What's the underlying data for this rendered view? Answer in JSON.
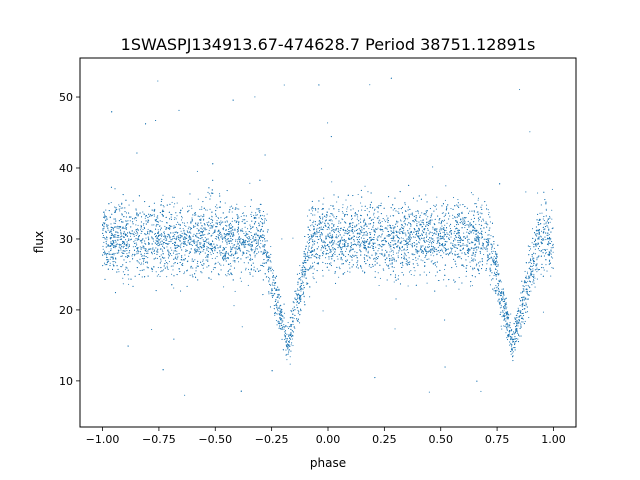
{
  "chart_data": {
    "type": "scatter",
    "title": "1SWASPJ134913.67-474628.7 Period 38751.12891s",
    "xlabel": "phase",
    "ylabel": "flux",
    "xlim": [
      -1.1,
      1.1
    ],
    "ylim": [
      3.5,
      55.5
    ],
    "xticks": [
      -1.0,
      -0.75,
      -0.5,
      -0.25,
      0.0,
      0.25,
      0.5,
      0.75,
      1.0
    ],
    "xtick_labels": [
      "−1.00",
      "−0.75",
      "−0.50",
      "−0.25",
      "0.00",
      "0.25",
      "0.50",
      "0.75",
      "1.00"
    ],
    "yticks": [
      10,
      20,
      30,
      40,
      50
    ],
    "ytick_labels": [
      "10",
      "20",
      "30",
      "40",
      "50"
    ],
    "grid": false,
    "legend": "none",
    "point_color": "#1f77b4",
    "series": [
      {
        "phase_range": [
          -1.0,
          1.0
        ],
        "baseline_flux": 30,
        "baseline_scatter": 2.5,
        "eclipses": [
          {
            "center_phase": -0.18,
            "min_flux": 15,
            "half_width": 0.11
          },
          {
            "center_phase": 0.82,
            "min_flux": 15,
            "half_width": 0.11
          }
        ],
        "outlier_flux_range": [
          5,
          53
        ],
        "approx_points": 30000
      }
    ]
  }
}
